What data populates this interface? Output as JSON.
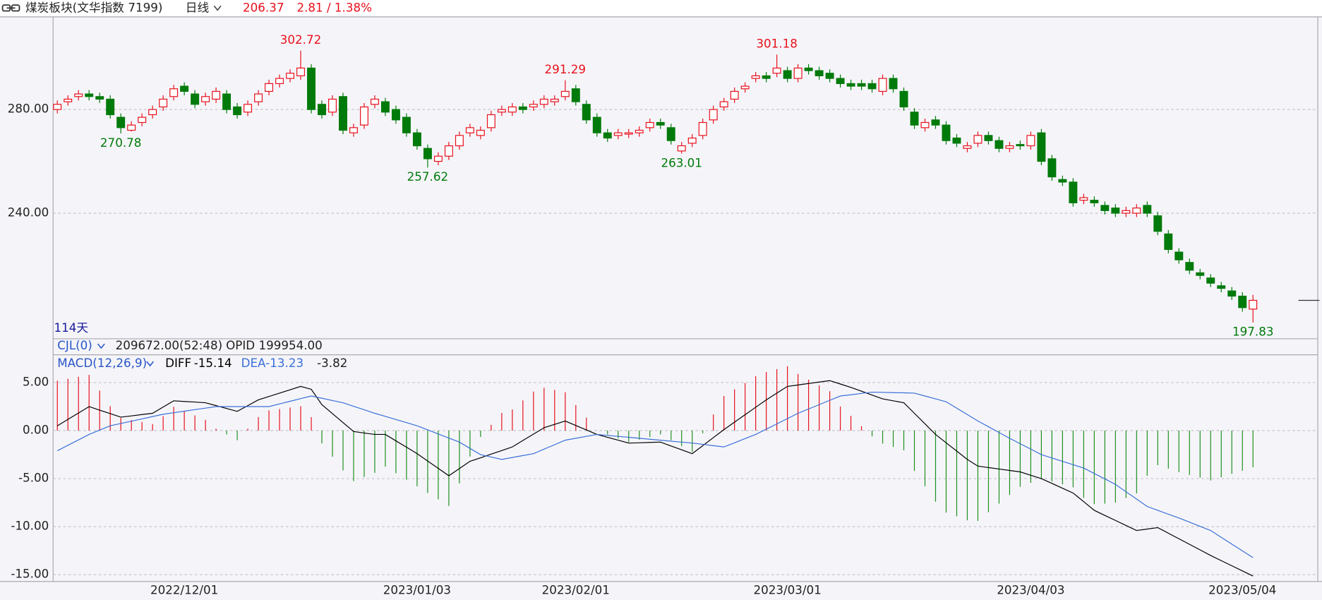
{
  "header": {
    "title": "煤炭板块(文华指数 7199)",
    "period": "日线",
    "change": "2.81 / 1.38%"
  },
  "indicator_bar": {
    "name": "CJL(0)",
    "volume": "209672.00(52:48)",
    "opid": "OPID 199954.00"
  },
  "chart_data": [
    {
      "type": "candlestick",
      "days_label": "114天",
      "up_color": "#e8101c",
      "down_color": "#007a0a",
      "grid": true,
      "categories": [
        null,
        null,
        null,
        null,
        null,
        null,
        null,
        null,
        null,
        null,
        null,
        null,
        "2022/12/01",
        null,
        null,
        null,
        null,
        null,
        null,
        null,
        null,
        null,
        null,
        null,
        null,
        null,
        null,
        null,
        null,
        null,
        null,
        null,
        null,
        null,
        "2023/01/03",
        null,
        null,
        null,
        null,
        null,
        null,
        null,
        null,
        null,
        null,
        null,
        null,
        null,
        null,
        "2023/02/01",
        null,
        null,
        null,
        null,
        null,
        null,
        null,
        null,
        null,
        null,
        null,
        null,
        null,
        null,
        null,
        null,
        null,
        null,
        null,
        "2023/03/01",
        null,
        null,
        null,
        null,
        null,
        null,
        null,
        null,
        null,
        null,
        null,
        null,
        null,
        null,
        null,
        null,
        null,
        null,
        null,
        null,
        null,
        null,
        "2023/04/03",
        null,
        null,
        null,
        null,
        null,
        null,
        null,
        null,
        null,
        null,
        null,
        null,
        null,
        null,
        null,
        null,
        null,
        null,
        null,
        "2023/05/04",
        null
      ],
      "open": [
        280,
        283,
        285,
        286,
        285,
        284,
        277,
        272,
        275,
        278,
        281,
        285,
        289,
        286,
        283,
        284,
        286,
        281,
        279,
        283,
        287,
        290,
        292,
        293,
        296,
        282,
        279,
        285,
        271,
        274,
        282,
        283,
        280,
        277,
        271,
        265,
        260,
        262,
        266,
        271,
        270,
        273,
        279,
        279,
        281,
        281,
        282,
        283,
        285,
        288,
        282,
        277,
        271,
        270,
        270.5,
        271,
        273,
        275,
        273,
        264,
        267,
        270,
        276,
        281,
        284,
        288,
        292,
        293,
        294,
        295,
        292,
        296,
        295,
        294,
        292,
        290,
        290,
        290,
        287,
        292,
        287,
        279,
        273,
        276,
        274,
        269,
        265,
        267,
        270,
        268,
        265,
        266.5,
        266,
        271,
        261,
        253,
        252,
        245,
        245,
        243,
        242,
        240,
        240,
        243,
        239,
        232,
        225,
        221,
        217,
        215,
        212,
        210,
        208,
        203
      ],
      "high": [
        283.5,
        285.5,
        287.5,
        287.5,
        286.5,
        285.5,
        278.5,
        275.5,
        278.5,
        281.5,
        285.5,
        289.5,
        290.5,
        287.5,
        286.5,
        288.5,
        287.5,
        282.5,
        283.5,
        287.5,
        291.5,
        293.5,
        295.5,
        302.72,
        297.5,
        283.5,
        285.5,
        286.5,
        274.5,
        282.5,
        285.5,
        284.5,
        281.5,
        278.5,
        272.5,
        266.5,
        263.5,
        267.5,
        271.5,
        274.5,
        273.5,
        279.5,
        281.5,
        282.5,
        282.5,
        283.5,
        285.5,
        285.5,
        291.29,
        289.5,
        283.5,
        278.5,
        272.5,
        272.5,
        272.5,
        273.5,
        276.5,
        276.5,
        274.5,
        267.5,
        270.5,
        276.5,
        281.5,
        284.5,
        288.5,
        290.5,
        294.5,
        294.5,
        301.18,
        296.5,
        297.5,
        297.5,
        296.5,
        295.5,
        293.5,
        291.5,
        291.5,
        291.5,
        293.5,
        293.5,
        288.5,
        280.5,
        276.5,
        277.5,
        275.5,
        270.5,
        267.5,
        271.5,
        271.5,
        269.5,
        267.5,
        268,
        271.5,
        272.5,
        262.5,
        254.5,
        253.5,
        247.5,
        246.5,
        244.5,
        243.5,
        242.5,
        243.5,
        244.5,
        240.5,
        233.5,
        226.5,
        222.5,
        218.5,
        216.5,
        213.5,
        211.5,
        209.5,
        208.5
      ],
      "low": [
        278.5,
        281.5,
        283.5,
        283.5,
        282.5,
        276.5,
        270.78,
        271.5,
        273.5,
        276.5,
        279.5,
        283.5,
        285.5,
        280.5,
        281.5,
        282.5,
        278.5,
        276.5,
        277.5,
        281.5,
        285.5,
        288.5,
        290.5,
        291.5,
        278.5,
        276.5,
        277.5,
        270.5,
        269.5,
        272.5,
        280.5,
        277.5,
        274.5,
        269.5,
        264.5,
        257.62,
        258.5,
        260.5,
        264.5,
        269.5,
        268.5,
        271.5,
        277.5,
        277.5,
        278.5,
        279.5,
        280.5,
        281.5,
        283.5,
        281.5,
        274.5,
        269.5,
        267.5,
        268.5,
        269,
        269.5,
        271.5,
        272.5,
        266.5,
        263.01,
        265.5,
        268.5,
        274.5,
        279.5,
        282.5,
        286.5,
        290.5,
        290.5,
        292.5,
        290.5,
        290.5,
        293.5,
        291.5,
        290.5,
        288.5,
        287.5,
        287.5,
        286.5,
        285.5,
        286.5,
        279.5,
        272.5,
        271.5,
        272.5,
        266.5,
        265.5,
        263.5,
        265.5,
        266.5,
        263.5,
        263.5,
        264.5,
        264.5,
        258.5,
        252.5,
        250.5,
        242.5,
        243.5,
        242.5,
        239.5,
        238.5,
        238.5,
        238.5,
        238.5,
        231.5,
        224.5,
        220.5,
        216.5,
        214.5,
        211.5,
        209.5,
        206.5,
        202,
        197.83
      ],
      "close": [
        282,
        284,
        286,
        285,
        284,
        278,
        273,
        274,
        277,
        280,
        284,
        288,
        287,
        282,
        285,
        287,
        280,
        278,
        282,
        286,
        290,
        292,
        294,
        296,
        280,
        278,
        284,
        272,
        273,
        281,
        284,
        279,
        276,
        271,
        266,
        261,
        262,
        266,
        270,
        273,
        272,
        278,
        280,
        281,
        280,
        282,
        284,
        284,
        287,
        283,
        276,
        271,
        269,
        271,
        271,
        272,
        275,
        274,
        268,
        266,
        269,
        275,
        280,
        283,
        287,
        289,
        293,
        292,
        296,
        292,
        296,
        295,
        293,
        292,
        290,
        289,
        289,
        288,
        292,
        288,
        281,
        274,
        275,
        274,
        268,
        267,
        266,
        270,
        268,
        265,
        266,
        266,
        270,
        260,
        254,
        252,
        244,
        246,
        244,
        241,
        240,
        241,
        242,
        240,
        233,
        226,
        222,
        218,
        216,
        213,
        211,
        208,
        203.56,
        206.37
      ],
      "ylim": [
        192.2,
        315.1
      ],
      "yticks": [
        {
          "value": 240,
          "label": "240.00"
        },
        {
          "value": 280,
          "label": "280.00"
        }
      ]
    },
    {
      "type": "macd",
      "title": "MACD(12,26,9)",
      "grid": true,
      "series": [
        {
          "name": "DIFF",
          "color": "#000000",
          "values": [
            0.5,
            1.17,
            1.83,
            2.5,
            2.13,
            1.77,
            1.4,
            1.53,
            1.67,
            1.8,
            2.45,
            3.1,
            3.03,
            2.97,
            2.9,
            2.6,
            2.3,
            2.0,
            2.6,
            3.2,
            3.55,
            3.9,
            4.25,
            4.6,
            4.3,
            2.7,
            1.77,
            0.83,
            -0.1,
            -0.25,
            -0.4,
            -0.4,
            -1.07,
            -1.73,
            -2.4,
            -3.17,
            -3.93,
            -4.7,
            -3.95,
            -3.2,
            -2.83,
            -2.45,
            -2.08,
            -1.7,
            -1.03,
            -0.37,
            0.3,
            0.65,
            1.0,
            0.53,
            0.07,
            -0.4,
            -0.7,
            -1.0,
            -1.3,
            -1.27,
            -1.23,
            -1.2,
            -1.6,
            -2.0,
            -2.4,
            -1.57,
            -0.73,
            0.1,
            0.88,
            1.65,
            2.43,
            3.2,
            3.9,
            4.6,
            4.75,
            4.9,
            5.05,
            5.2,
            4.85,
            4.5,
            4.1,
            3.7,
            3.3,
            3.1,
            2.9,
            1.8,
            0.7,
            -0.4,
            -1.27,
            -2.13,
            -3.0,
            -3.7,
            -3.85,
            -4.0,
            -4.15,
            -4.3,
            -4.65,
            -5.0,
            -5.5,
            -6.0,
            -6.5,
            -7.4,
            -8.3,
            -8.83,
            -9.35,
            -9.88,
            -10.4,
            -10.25,
            -10.1,
            -10.68,
            -11.26,
            -11.84,
            -12.42,
            -13.0,
            -13.54,
            -14.07,
            -14.61,
            -15.14
          ]
        },
        {
          "name": "DEA",
          "color": "#3a6fd8",
          "values": [
            -2.1,
            -1.53,
            -0.97,
            -0.4,
            0.05,
            0.5,
            0.74,
            0.98,
            1.22,
            1.46,
            1.7,
            1.86,
            2.02,
            2.18,
            2.34,
            2.5,
            2.5,
            2.5,
            2.5,
            2.5,
            2.5,
            2.78,
            3.05,
            3.33,
            3.6,
            3.37,
            3.13,
            2.9,
            2.53,
            2.17,
            1.8,
            1.48,
            1.15,
            0.83,
            0.5,
            0.08,
            -0.35,
            -0.78,
            -1.2,
            -1.85,
            -2.5,
            -2.75,
            -3.0,
            -2.8,
            -2.6,
            -2.4,
            -1.93,
            -1.47,
            -1.0,
            -0.8,
            -0.6,
            -0.4,
            -0.5,
            -0.6,
            -0.7,
            -0.8,
            -0.9,
            -1.0,
            -1.1,
            -1.2,
            -1.3,
            -1.43,
            -1.57,
            -1.7,
            -1.27,
            -0.83,
            -0.4,
            0.15,
            0.7,
            1.25,
            1.8,
            2.25,
            2.7,
            3.15,
            3.6,
            3.73,
            3.87,
            4.0,
            3.98,
            3.95,
            3.93,
            3.9,
            3.6,
            3.3,
            3.0,
            2.33,
            1.67,
            1.0,
            0.4,
            -0.2,
            -0.8,
            -1.37,
            -1.93,
            -2.5,
            -2.85,
            -3.2,
            -3.55,
            -3.9,
            -4.47,
            -5.03,
            -5.6,
            -6.37,
            -7.13,
            -7.9,
            -8.3,
            -8.7,
            -9.1,
            -9.53,
            -9.97,
            -10.4,
            -11.11,
            -11.82,
            -12.52,
            -13.23
          ]
        }
      ],
      "histogram": {
        "up_color": "#e8101c",
        "down_color": "#1f8f1f",
        "values": [
          5.2,
          5.4,
          5.6,
          5.8,
          4.16,
          2.54,
          1.32,
          1.1,
          0.9,
          0.68,
          1.5,
          2.48,
          2.02,
          1.58,
          1.12,
          0.2,
          -0.4,
          -1.0,
          0.2,
          1.4,
          2.1,
          2.24,
          2.4,
          2.54,
          1.4,
          -1.34,
          -2.72,
          -4.14,
          -5.26,
          -4.84,
          -4.4,
          -3.76,
          -4.44,
          -5.12,
          -5.8,
          -6.5,
          -7.16,
          -7.84,
          -5.5,
          -2.7,
          -0.66,
          0.6,
          1.84,
          2.2,
          3.14,
          4.06,
          4.46,
          4.24,
          4.0,
          2.66,
          1.34,
          0,
          -0.4,
          -0.8,
          -1.2,
          -0.94,
          -0.66,
          -0.4,
          -1.0,
          -1.6,
          -2.2,
          -0.28,
          1.68,
          3.6,
          4.3,
          4.96,
          5.66,
          6.1,
          6.4,
          6.7,
          5.9,
          5.3,
          4.7,
          4.1,
          2.5,
          1.54,
          0.46,
          -0.6,
          -1.36,
          -1.7,
          -2.06,
          -4.2,
          -5.8,
          -7.4,
          -8.54,
          -8.92,
          -9.34,
          -9.4,
          -8.5,
          -7.6,
          -6.7,
          -5.86,
          -5.44,
          -5.0,
          -5.3,
          -5.6,
          -5.9,
          -7.0,
          -7.66,
          -7.6,
          -7.5,
          -7.02,
          -6.54,
          -4.7,
          -3.6,
          -3.96,
          -4.32,
          -4.62,
          -4.9,
          -5.2,
          -4.86,
          -4.5,
          -4.18,
          -3.82
        ]
      },
      "ylim": [
        -15.53,
        6.05
      ],
      "yticks": [
        {
          "value": 5,
          "label": "5.00"
        },
        {
          "value": 0,
          "label": "0.00"
        },
        {
          "value": -5,
          "label": "-5.00"
        },
        {
          "value": -10,
          "label": "-10.00"
        },
        {
          "value": -15,
          "label": "-15.00"
        }
      ]
    }
  ]
}
